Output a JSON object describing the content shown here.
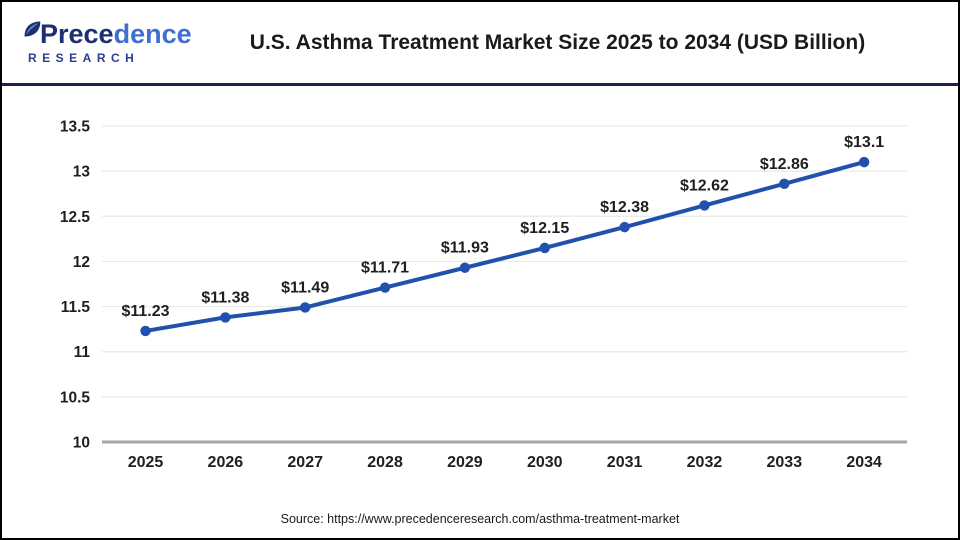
{
  "header": {
    "logo": {
      "word_part1": "Prece",
      "word_part2": "dence",
      "subtitle": "RESEARCH"
    },
    "title": "U.S. Asthma Treatment Market Size 2025 to 2034 (USD Billion)"
  },
  "chart_data": {
    "type": "line",
    "title": "U.S. Asthma Treatment Market Size 2025 to 2034 (USD Billion)",
    "categories": [
      "2025",
      "2026",
      "2027",
      "2028",
      "2029",
      "2030",
      "2031",
      "2032",
      "2033",
      "2034"
    ],
    "values": [
      11.23,
      11.38,
      11.49,
      11.71,
      11.93,
      12.15,
      12.38,
      12.62,
      12.86,
      13.1
    ],
    "data_labels": [
      "$11.23",
      "$11.38",
      "$11.49",
      "$11.71",
      "$11.93",
      "$12.15",
      "$12.38",
      "$12.62",
      "$12.86",
      "$13.1"
    ],
    "ytick_values": [
      10,
      10.5,
      11,
      11.5,
      12,
      12.5,
      13,
      13.5
    ],
    "ytick_labels": [
      "10",
      "10.5",
      "11",
      "11.5",
      "12",
      "12.5",
      "13",
      "13.5"
    ],
    "ylim": [
      10,
      13.5
    ],
    "xlabel": "",
    "ylabel": "",
    "grid": true,
    "legend": "none",
    "line_color": "#2151ac",
    "marker_color": "#2151ac",
    "grid_color": "#e9e9e9",
    "axis_color": "#a6a6a6",
    "label_color": "#1f1f1f"
  },
  "footer": {
    "source": "Source: https://www.precedenceresearch.com/asthma-treatment-market"
  }
}
